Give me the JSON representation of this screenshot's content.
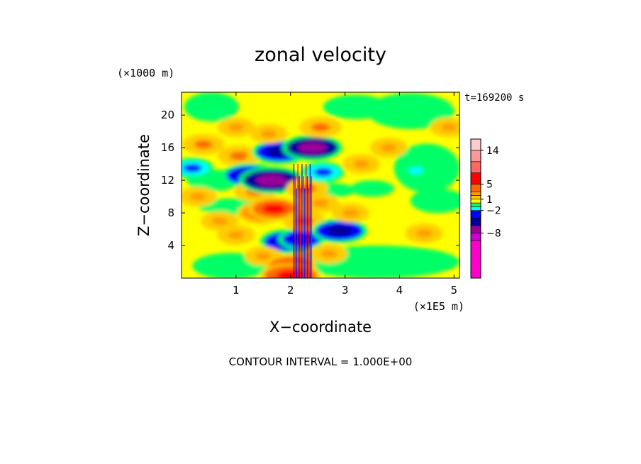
{
  "chart_data": {
    "type": "heatmap",
    "title": "zonal velocity",
    "xlabel": "X−coordinate",
    "ylabel": "Z−coordinate",
    "x_unit": "(×1E5 m)",
    "y_unit": "(×1000 m)",
    "time_label": "t=169200 s",
    "footer": "CONTOUR INTERVAL = 1.000E+00",
    "xlim": [
      0,
      5.1
    ],
    "ylim": [
      0,
      22.8
    ],
    "x_ticks": [
      1,
      2,
      3,
      4,
      5
    ],
    "y_ticks": [
      4,
      8,
      12,
      16,
      20
    ],
    "colorbar": {
      "levels": [
        -20,
        -10,
        -8,
        -6,
        -4,
        -2,
        -1,
        0,
        1,
        2,
        3,
        5,
        8,
        11,
        14,
        17
      ],
      "colors": [
        "#ff00cc",
        "#cc00cc",
        "#990099",
        "#000099",
        "#0000ff",
        "#00ffff",
        "#00ff66",
        "#ffff00",
        "#ffcc00",
        "#ff9900",
        "#ff6600",
        "#ff0000",
        "#ff6666",
        "#ff9999",
        "#ffcccc"
      ],
      "tick_labels": [
        {
          "value": 14,
          "label": "14"
        },
        {
          "value": 5,
          "label": "5"
        },
        {
          "value": 1,
          "label": "1"
        },
        {
          "value": -2,
          "label": "−2"
        },
        {
          "value": -8,
          "label": "−8"
        }
      ]
    },
    "features": [
      {
        "x": 0.2,
        "z": 13.5,
        "value": -3
      },
      {
        "x": 0.4,
        "z": 16.4,
        "value": 3
      },
      {
        "x": 0.3,
        "z": 10.0,
        "value": 2
      },
      {
        "x": 0.7,
        "z": 7.0,
        "value": 2
      },
      {
        "x": 1.0,
        "z": 18.5,
        "value": 2
      },
      {
        "x": 1.05,
        "z": 15.0,
        "value": 3
      },
      {
        "x": 1.25,
        "z": 12.6,
        "value": -6
      },
      {
        "x": 1.35,
        "z": 10.6,
        "value": 3
      },
      {
        "x": 1.0,
        "z": 5.3,
        "value": 2
      },
      {
        "x": 1.45,
        "z": 8.0,
        "value": 4
      },
      {
        "x": 1.7,
        "z": 8.5,
        "value": 5
      },
      {
        "x": 1.65,
        "z": 12.0,
        "value": -8
      },
      {
        "x": 1.8,
        "z": 15.5,
        "value": -6
      },
      {
        "x": 1.6,
        "z": 17.7,
        "value": 2
      },
      {
        "x": 1.95,
        "z": 4.5,
        "value": -6
      },
      {
        "x": 1.5,
        "z": 2.7,
        "value": 2
      },
      {
        "x": 2.0,
        "z": 1.5,
        "value": 5
      },
      {
        "x": 2.0,
        "z": 0.3,
        "value": 7
      },
      {
        "x": 2.2,
        "z": 4.8,
        "value": -4
      },
      {
        "x": 2.25,
        "z": 7.0,
        "value": 3
      },
      {
        "x": 2.3,
        "z": 11.0,
        "value": 3
      },
      {
        "x": 2.4,
        "z": 16.0,
        "value": -7
      },
      {
        "x": 2.55,
        "z": 18.5,
        "value": 3
      },
      {
        "x": 2.6,
        "z": 13.0,
        "value": -3
      },
      {
        "x": 2.55,
        "z": 9.2,
        "value": 2
      },
      {
        "x": 2.9,
        "z": 5.8,
        "value": -6
      },
      {
        "x": 2.7,
        "z": 3.0,
        "value": 2
      },
      {
        "x": 3.1,
        "z": 8.0,
        "value": 2
      },
      {
        "x": 3.3,
        "z": 14.0,
        "value": 2
      },
      {
        "x": 3.8,
        "z": 16.0,
        "value": 2
      },
      {
        "x": 4.3,
        "z": 13.2,
        "value": -1.5
      },
      {
        "x": 4.45,
        "z": 5.5,
        "value": 2
      },
      {
        "x": 4.9,
        "z": 18.5,
        "value": 2
      }
    ]
  }
}
